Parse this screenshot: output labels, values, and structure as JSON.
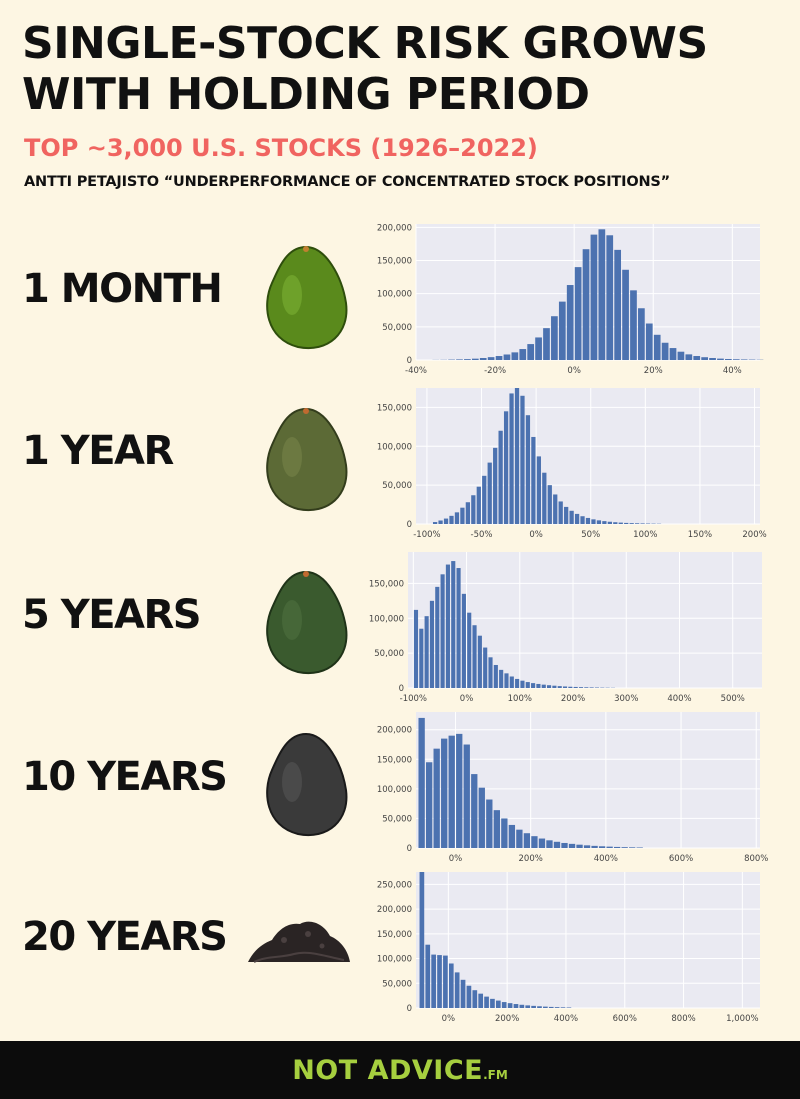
{
  "header": {
    "title_line1": "SINGLE-STOCK RISK GROWS",
    "title_line2": "WITH HOLDING PERIOD",
    "subtitle": "TOP ~3,000 U.S. STOCKS (1926–2022)",
    "source": "ANTTI PETAJISTO “UNDERPERFORMANCE OF CONCENTRATED STOCK POSITIONS”"
  },
  "rows": [
    {
      "label": "1 MONTH",
      "icon": "ripe-green-avocado-icon",
      "color": "#5a8a1c"
    },
    {
      "label": "1 YEAR",
      "icon": "olive-avocado-icon",
      "color": "#5c6a36"
    },
    {
      "label": "5 YEARS",
      "icon": "dark-green-avocado-icon",
      "color": "#3a5a2e"
    },
    {
      "label": "10 YEARS",
      "icon": "black-avocado-icon",
      "color": "#3a3a3a"
    },
    {
      "label": "20 YEARS",
      "icon": "compost-pile-icon",
      "color": "#2a2424"
    }
  ],
  "colors": {
    "bar": "#4c72b0",
    "plot_bg": "#eaeaf2",
    "grid": "#ffffff",
    "accent": "#f06460",
    "logo": "#a6cf3f"
  },
  "chart_data": [
    {
      "type": "bar",
      "title": "1 MONTH",
      "xlim": [
        -40,
        47
      ],
      "xticks": [
        -40,
        -20,
        0,
        20,
        40
      ],
      "xtick_labels": [
        "-40%",
        "-20%",
        "0%",
        "20%",
        "40%"
      ],
      "ylim": [
        0,
        205000
      ],
      "yticks": [
        0,
        50000,
        100000,
        150000,
        200000
      ],
      "ytick_labels": [
        "0",
        "50,000",
        "100,000",
        "150,000",
        "200,000"
      ],
      "bin_start": -36,
      "bin_width": 2,
      "values": [
        200,
        300,
        600,
        900,
        1300,
        2000,
        3000,
        4300,
        6000,
        8300,
        11500,
        16500,
        24000,
        34000,
        48000,
        66000,
        88000,
        113000,
        140000,
        167000,
        189000,
        197000,
        188000,
        166000,
        136000,
        105000,
        78000,
        55000,
        38000,
        26000,
        18000,
        12500,
        8500,
        6000,
        4200,
        3000,
        2100,
        1500,
        1100,
        800,
        600,
        400
      ]
    },
    {
      "type": "bar",
      "title": "1 YEAR",
      "xlim": [
        -110,
        205
      ],
      "xticks": [
        -100,
        -50,
        0,
        50,
        100,
        150,
        200
      ],
      "xtick_labels": [
        "-100%",
        "-50%",
        "0%",
        "50%",
        "100%",
        "150%",
        "200%"
      ],
      "ylim": [
        0,
        175000
      ],
      "yticks": [
        0,
        50000,
        100000,
        150000
      ],
      "ytick_labels": [
        "0",
        "50,000",
        "100,000",
        "150,000"
      ],
      "bin_start": -95,
      "bin_width": 5,
      "values": [
        2500,
        4500,
        7000,
        10500,
        15000,
        21000,
        28000,
        37000,
        48000,
        62000,
        79000,
        98000,
        120000,
        145000,
        168000,
        177000,
        165000,
        140000,
        112000,
        87000,
        66000,
        50000,
        38000,
        29000,
        22000,
        17000,
        13000,
        10000,
        7800,
        6000,
        4700,
        3700,
        2900,
        2300,
        1800,
        1400,
        1100,
        900,
        700,
        550,
        430,
        340
      ]
    },
    {
      "type": "bar",
      "title": "5 YEARS",
      "xlim": [
        -110,
        555
      ],
      "xticks": [
        -100,
        0,
        100,
        200,
        300,
        400,
        500
      ],
      "xtick_labels": [
        "-100%",
        "0%",
        "100%",
        "200%",
        "300%",
        "400%",
        "500%"
      ],
      "ylim": [
        0,
        195000
      ],
      "yticks": [
        0,
        50000,
        100000,
        150000
      ],
      "ytick_labels": [
        "0",
        "50,000",
        "100,000",
        "150,000"
      ],
      "bin_start": -100,
      "bin_width": 10,
      "values": [
        112000,
        85000,
        103000,
        125000,
        145000,
        163000,
        177000,
        182000,
        172000,
        135000,
        108000,
        90000,
        75000,
        58000,
        44000,
        33000,
        26000,
        21000,
        16500,
        13000,
        10500,
        8500,
        7000,
        5800,
        4800,
        4000,
        3300,
        2700,
        2200,
        1800,
        1500,
        1200,
        1000,
        800,
        650,
        500,
        400,
        300
      ]
    },
    {
      "type": "bar",
      "title": "10 YEARS",
      "xlim": [
        -105,
        810
      ],
      "xticks": [
        0,
        200,
        400,
        600,
        800
      ],
      "xtick_labels": [
        "0%",
        "200%",
        "400%",
        "600%",
        "800%"
      ],
      "ylim": [
        0,
        230000
      ],
      "yticks": [
        0,
        50000,
        100000,
        150000,
        200000
      ],
      "ytick_labels": [
        "0",
        "50,000",
        "100,000",
        "150,000",
        "200,000"
      ],
      "bin_start": -100,
      "bin_width": 20,
      "values": [
        220000,
        145000,
        168000,
        185000,
        190000,
        193000,
        175000,
        125000,
        102000,
        82000,
        64000,
        50000,
        39000,
        31000,
        25000,
        20000,
        16000,
        13000,
        10500,
        8500,
        7000,
        5600,
        4500,
        3600,
        2900,
        2300,
        1800,
        1400,
        1100,
        850
      ]
    },
    {
      "type": "bar",
      "title": "20 YEARS",
      "xlim": [
        -110,
        1060
      ],
      "xticks": [
        0,
        200,
        400,
        600,
        800,
        1000
      ],
      "xtick_labels": [
        "0%",
        "200%",
        "400%",
        "600%",
        "800%",
        "1,000%"
      ],
      "ylim": [
        0,
        275000
      ],
      "yticks": [
        0,
        50000,
        100000,
        150000,
        200000,
        250000
      ],
      "ytick_labels": [
        "0",
        "50,000",
        "100,000",
        "150,000",
        "200,000",
        "250,000"
      ],
      "bin_start": -100,
      "bin_width": 20,
      "values": [
        283000,
        128000,
        108000,
        107000,
        106000,
        90000,
        72000,
        57000,
        45000,
        36000,
        29000,
        23000,
        18500,
        15000,
        12000,
        9800,
        8000,
        6500,
        5300,
        4300,
        3500,
        2800,
        2200,
        1700,
        1300,
        1000
      ]
    }
  ],
  "footer": {
    "logo_main": "NOT ADVICE",
    "logo_suffix": ".FM"
  }
}
